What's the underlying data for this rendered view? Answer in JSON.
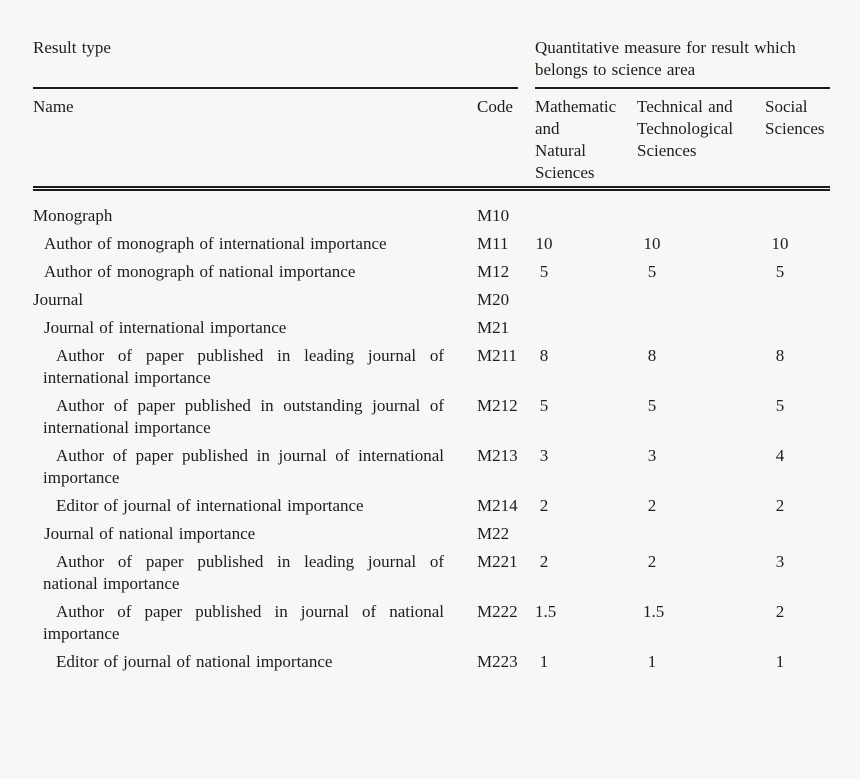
{
  "page": {
    "background": "#f7f7f6",
    "text_color": "#1d1d1b",
    "rule_color": "#1b1b19"
  },
  "table": {
    "group_headers": {
      "left": "Result type",
      "right": "Quantitative measure for result which\nbelongs to science area"
    },
    "columns": {
      "name": "Name",
      "code": "Code",
      "measures": [
        "Mathematic\nand\nNatural\nSciences",
        "Technical and\nTechnological\nSciences",
        "Social\nSciences"
      ]
    },
    "rows": [
      {
        "name": "Monograph",
        "indent": 0,
        "code": "M10",
        "values": [
          "",
          "",
          ""
        ]
      },
      {
        "name": "Author of monograph of international importance",
        "indent": 1,
        "code": "M11",
        "values": [
          "10",
          "10",
          "10"
        ]
      },
      {
        "name": "Author of monograph of national importance",
        "indent": 1,
        "code": "M12",
        "values": [
          "5",
          "5",
          "5"
        ]
      },
      {
        "name": "Journal",
        "indent": 0,
        "code": "M20",
        "values": [
          "",
          "",
          ""
        ]
      },
      {
        "name": "Journal of international importance",
        "indent": 1,
        "code": "M21",
        "values": [
          "",
          "",
          ""
        ]
      },
      {
        "name": "Author of paper published in leading journal of international importance",
        "indent": 2,
        "code": "M211",
        "values": [
          "8",
          "8",
          "8"
        ]
      },
      {
        "name": "Author of paper published in outstanding journal of international importance",
        "indent": 2,
        "code": "M212",
        "values": [
          "5",
          "5",
          "5"
        ]
      },
      {
        "name": "Author of paper published in journal of international importance",
        "indent": 2,
        "code": "M213",
        "values": [
          "3",
          "3",
          "4"
        ]
      },
      {
        "name": "Editor of journal of international importance",
        "indent": 2,
        "code": "M214",
        "values": [
          "2",
          "2",
          "2"
        ]
      },
      {
        "name": "Journal of national importance",
        "indent": 1,
        "code": "M22",
        "values": [
          "",
          "",
          ""
        ]
      },
      {
        "name": "Author of paper published in leading journal of national importance",
        "indent": 2,
        "code": "M221",
        "values": [
          "2",
          "2",
          "3"
        ]
      },
      {
        "name": "Author of paper published in journal of national importance",
        "indent": 2,
        "code": "M222",
        "values": [
          "1.5",
          "1.5",
          "2"
        ]
      },
      {
        "name": "Editor of journal of national importance",
        "indent": 2,
        "code": "M223",
        "values": [
          "1",
          "1",
          "1"
        ]
      }
    ]
  }
}
